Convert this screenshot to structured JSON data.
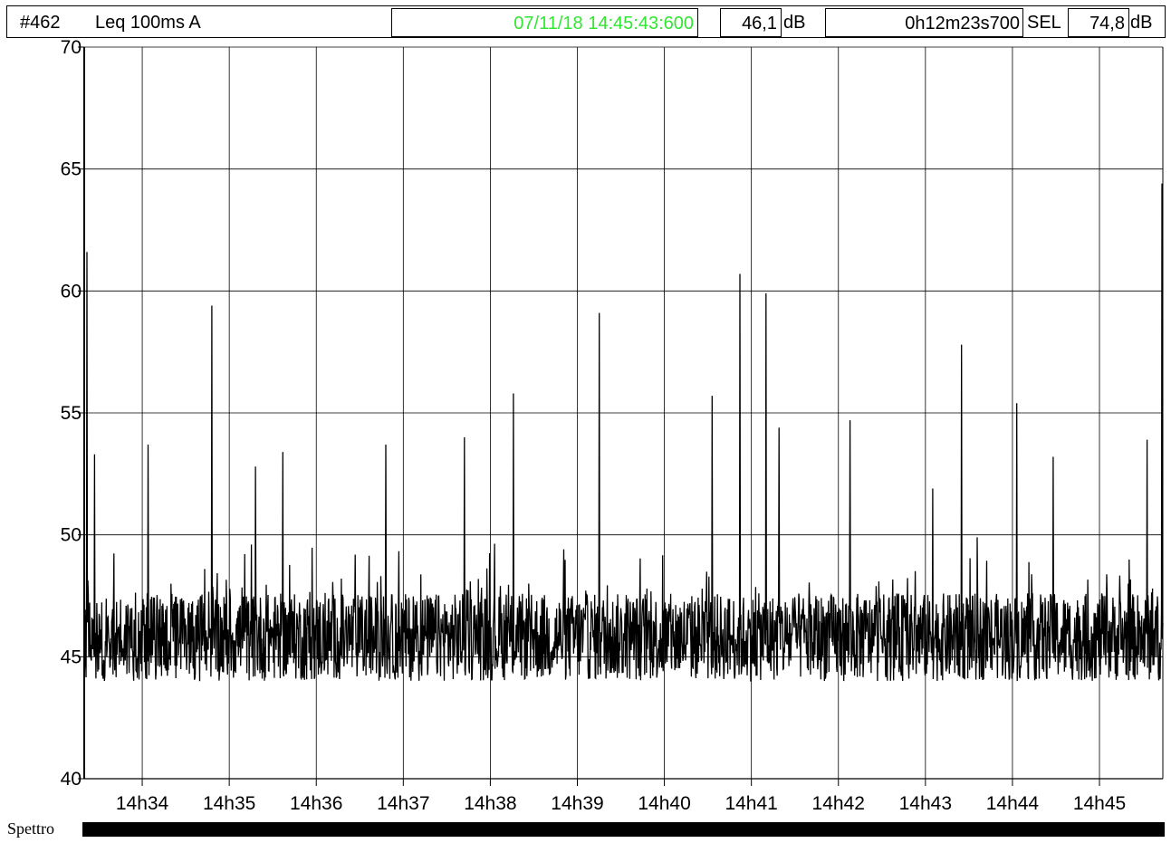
{
  "header": {
    "measure_id": "#462",
    "measure_type": "Leq 100ms  A",
    "timestamp": "07/11/18 14:45:43:600",
    "level_value": "46,1",
    "level_unit": "dB",
    "duration": "0h12m23s700",
    "sel_label": "SEL",
    "sel_value": "74,8",
    "sel_unit": "dB"
  },
  "colors": {
    "timestamp": "#33e633",
    "trace": "#000000",
    "grid": "#000000"
  },
  "chart_data": {
    "type": "line",
    "xlabel": "",
    "ylabel": "",
    "xlim": [
      "14h33:20.0",
      "14h45:43.7"
    ],
    "ylim": [
      40,
      70
    ],
    "y_ticks": [
      40,
      45,
      50,
      55,
      60,
      65,
      70
    ],
    "x_ticks": [
      "14h34",
      "14h35",
      "14h36",
      "14h37",
      "14h38",
      "14h39",
      "14h40",
      "14h41",
      "14h42",
      "14h43",
      "14h44",
      "14h45"
    ],
    "grid": true,
    "baseline_level_dB": 45.8,
    "series": [
      {
        "values_description_points": [
          {
            "time": "14h33:20",
            "dB": 44.3
          },
          {
            "time": "14h33:22",
            "dB": 61.6
          },
          {
            "time": "14h33:27",
            "dB": 53.3
          },
          {
            "time": "14h34:04",
            "dB": 53.7
          },
          {
            "time": "14h34:48",
            "dB": 59.4
          },
          {
            "time": "14h35:18",
            "dB": 52.8
          },
          {
            "time": "14h35:37",
            "dB": 53.4
          },
          {
            "time": "14h36:48",
            "dB": 53.7
          },
          {
            "time": "14h37:42",
            "dB": 54.0
          },
          {
            "time": "14h38:16",
            "dB": 55.8
          },
          {
            "time": "14h39:15",
            "dB": 59.1
          },
          {
            "time": "14h40:33",
            "dB": 55.7
          },
          {
            "time": "14h40:52",
            "dB": 60.7
          },
          {
            "time": "14h41:10",
            "dB": 59.9
          },
          {
            "time": "14h41:19",
            "dB": 54.4
          },
          {
            "time": "14h42:08",
            "dB": 54.7
          },
          {
            "time": "14h43:05",
            "dB": 51.9
          },
          {
            "time": "14h43:25",
            "dB": 57.8
          },
          {
            "time": "14h44:03",
            "dB": 55.4
          },
          {
            "time": "14h44:28",
            "dB": 53.2
          },
          {
            "time": "14h45:33",
            "dB": 53.9
          },
          {
            "time": "14h45:43",
            "dB": 64.4
          }
        ],
        "min_dB": 42.8
      }
    ]
  },
  "footer": {
    "label": "Spettro"
  }
}
